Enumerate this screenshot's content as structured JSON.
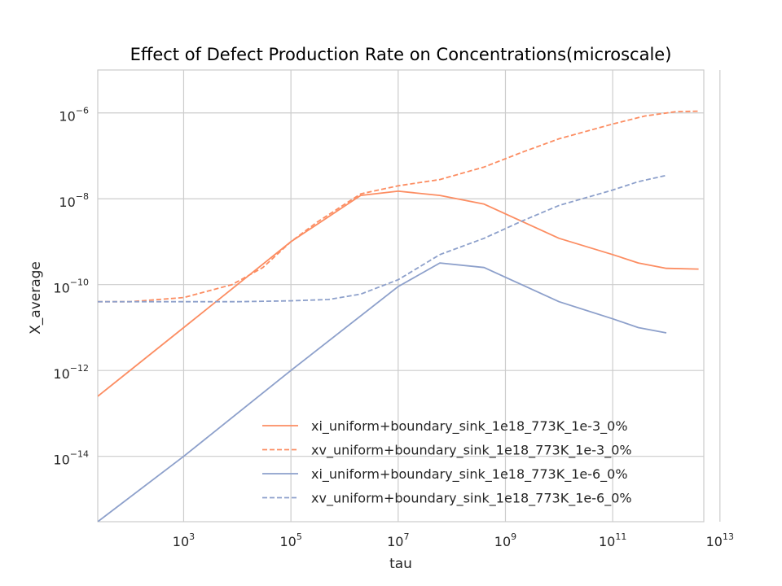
{
  "chart_data": {
    "type": "line",
    "title": "Effect of Defect Production Rate on Concentrations(microscale)",
    "xlabel": "tau",
    "ylabel": "X_average",
    "x_scale": "log",
    "y_scale": "log",
    "xlim": [
      25,
      5000000000000.0
    ],
    "ylim": [
      3e-16,
      1e-05
    ],
    "xticks": [
      {
        "base": "10",
        "exp": "3",
        "value": 1000.0
      },
      {
        "base": "10",
        "exp": "5",
        "value": 100000.0
      },
      {
        "base": "10",
        "exp": "7",
        "value": 10000000.0
      },
      {
        "base": "10",
        "exp": "9",
        "value": 1000000000.0
      },
      {
        "base": "10",
        "exp": "11",
        "value": 100000000000.0
      },
      {
        "base": "10",
        "exp": "13",
        "value": 10000000000000.0
      }
    ],
    "yticks": [
      {
        "base": "10",
        "exp": "−6",
        "value": 1e-06
      },
      {
        "base": "10",
        "exp": "−8",
        "value": 1e-08
      },
      {
        "base": "10",
        "exp": "−10",
        "value": 1e-10
      },
      {
        "base": "10",
        "exp": "−12",
        "value": 1e-12
      },
      {
        "base": "10",
        "exp": "−14",
        "value": 1e-14
      }
    ],
    "grid": true,
    "legend_position": "lower-right",
    "series": [
      {
        "name": "xi_uniform+boundary_sink_1e18_773K_1e-3_0%",
        "color": "#fc8d62",
        "style": "solid",
        "x": [
          25,
          1000.0,
          100000.0,
          2000000.0,
          10000000.0,
          60000000.0,
          400000000.0,
          2000000000.0,
          10000000000.0,
          100000000000.0,
          300000000000.0,
          1000000000000.0,
          4000000000000.0
        ],
        "y": [
          2.5e-13,
          1e-11,
          1e-09,
          1.2e-08,
          1.5e-08,
          1.2e-08,
          7.5e-09,
          3e-09,
          1.2e-09,
          5e-10,
          3.2e-10,
          2.4e-10,
          2.3e-10
        ]
      },
      {
        "name": "xv_uniform+boundary_sink_1e18_773K_1e-3_0%",
        "color": "#fc8d62",
        "style": "dashed",
        "x": [
          25,
          100.0,
          1000.0,
          8000.0,
          30000.0,
          100000.0,
          300000.0,
          2000000.0,
          10000000.0,
          60000000.0,
          400000000.0,
          2000000000.0,
          10000000000.0,
          100000000000.0,
          400000000000.0,
          1500000000000.0,
          4000000000000.0
        ],
        "y": [
          4e-11,
          4e-11,
          5e-11,
          1e-10,
          2.5e-10,
          1e-09,
          2.8e-09,
          1.3e-08,
          2e-08,
          2.8e-08,
          5.5e-08,
          1.2e-07,
          2.5e-07,
          5.5e-07,
          8.5e-07,
          1.07e-06,
          1.1e-06
        ]
      },
      {
        "name": "xi_uniform+boundary_sink_1e18_773K_1e-6_0%",
        "color": "#8da0cb",
        "style": "solid",
        "x": [
          25,
          1000.0,
          100000.0,
          10000000.0,
          60000000.0,
          400000000.0,
          2000000000.0,
          10000000000.0,
          100000000000.0,
          300000000000.0,
          1000000000000.0
        ],
        "y": [
          3e-16,
          1e-14,
          1e-12,
          9e-11,
          3.2e-10,
          2.5e-10,
          1e-10,
          4e-11,
          1.6e-11,
          1e-11,
          7.5e-12
        ]
      },
      {
        "name": "xv_uniform+boundary_sink_1e18_773K_1e-6_0%",
        "color": "#8da0cb",
        "style": "dashed",
        "x": [
          25,
          10000.0,
          100000.0,
          500000.0,
          2000000.0,
          10000000.0,
          60000000.0,
          400000000.0,
          2000000000.0,
          10000000000.0,
          100000000000.0,
          300000000000.0,
          1000000000000.0
        ],
        "y": [
          4e-11,
          4e-11,
          4.2e-11,
          4.5e-11,
          6e-11,
          1.3e-10,
          5e-10,
          1.2e-09,
          3e-09,
          7e-09,
          1.6e-08,
          2.5e-08,
          3.5e-08
        ]
      }
    ]
  }
}
